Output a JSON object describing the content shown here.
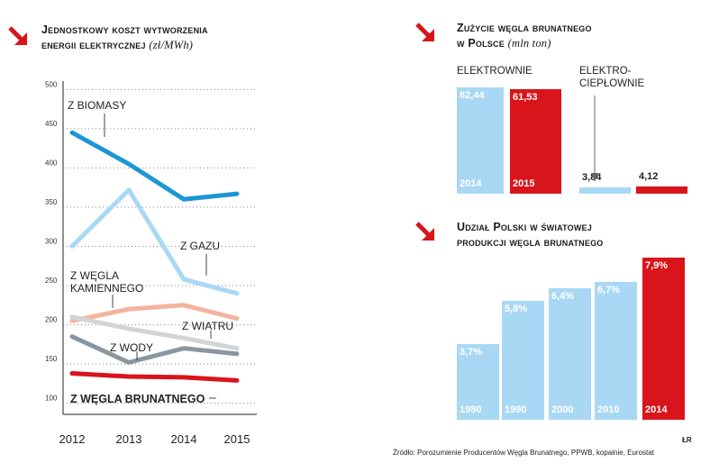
{
  "colors": {
    "red": "#d9141b",
    "light_blue": "#a9d8f5",
    "dark_blue": "#1d96d6",
    "salmon": "#f2b49e",
    "light_gray": "#d4d4d4",
    "dark_gray": "#8a97a0"
  },
  "icons": {
    "title_arrow": "arrow-down-right-icon"
  },
  "left": {
    "title_line1": "Jednostkowy koszt wytworzenia",
    "title_line2": "energii elektrycznej",
    "title_unit": "(zł/MWh)"
  },
  "top_right": {
    "title_line1": "Zużycie węgla brunatnego",
    "title_line2": "w Polsce",
    "title_unit": "(mln ton)",
    "group1_label": "ELEKTROWNIE",
    "group2_label_line1": "ELEKTRO-",
    "group2_label_line2": "CIEPŁOWNIE"
  },
  "bottom_right": {
    "title_line1": "Udział Polski w światowej",
    "title_line2": "produkcji węgla brunatnego"
  },
  "source": "Źródło: Porozumienie Producentów Węgla Brunatnego, PPWB, kopalnie, Eurostat",
  "credit": "ŁR",
  "chart_data": [
    {
      "type": "line",
      "title": "Jednostkowy koszt wytworzenia energii elektrycznej (zł/MWh)",
      "x": [
        "2012",
        "2013",
        "2014",
        "2015"
      ],
      "y_ticks": [
        100,
        150,
        200,
        250,
        300,
        350,
        400,
        450,
        500
      ],
      "ylim": [
        95,
        505
      ],
      "grid": "horizontal dotted",
      "series": [
        {
          "name": "Z BIOMASY",
          "values": [
            445,
            405,
            360,
            367
          ],
          "color": "#1d96d6"
        },
        {
          "name": "Z GAZU",
          "values": [
            300,
            372,
            258,
            240
          ],
          "color": "#a9d8f5"
        },
        {
          "name": "Z WĘGLA KAMIENNEGO",
          "values": [
            205,
            220,
            225,
            208
          ],
          "color": "#f2b49e"
        },
        {
          "name": "Z WIATRU",
          "values": [
            210,
            195,
            183,
            170
          ],
          "color": "#d4d4d4"
        },
        {
          "name": "Z WODY",
          "values": [
            185,
            152,
            170,
            163
          ],
          "color": "#8a97a0"
        },
        {
          "name": "Z WĘGLA BRUNATNEGO",
          "values": [
            138,
            134,
            133,
            129
          ],
          "color": "#d9141b"
        }
      ]
    },
    {
      "type": "bar",
      "title": "Zużycie węgla brunatnego w Polsce (mln ton)",
      "groups": [
        {
          "name": "ELEKTROWNIE",
          "bars": [
            {
              "year": "2014",
              "value": 62.44,
              "label": "62,44"
            },
            {
              "year": "2015",
              "value": 61.53,
              "label": "61,53"
            }
          ]
        },
        {
          "name": "ELEKTROCIEPŁOWNIE",
          "bars": [
            {
              "year": "2014",
              "value": 3.84,
              "label": "3,84"
            },
            {
              "year": "2015",
              "value": 4.12,
              "label": "4,12"
            }
          ]
        }
      ]
    },
    {
      "type": "bar",
      "title": "Udział Polski w światowej produkcji węgla brunatnego",
      "categories": [
        "1980",
        "1990",
        "2000",
        "2010",
        "2014"
      ],
      "values": [
        3.7,
        5.8,
        6.4,
        6.7,
        7.9
      ],
      "labels": [
        "3,7%",
        "5,8%",
        "6,4%",
        "6,7%",
        "7,9%"
      ]
    }
  ]
}
